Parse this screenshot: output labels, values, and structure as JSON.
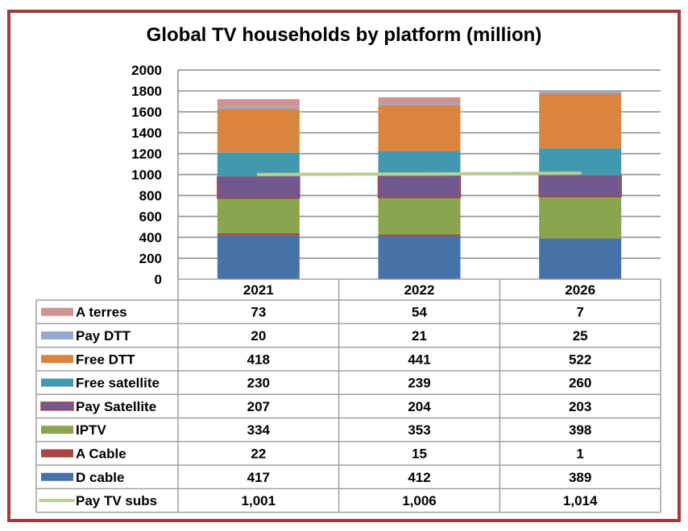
{
  "chart_data": {
    "type": "bar",
    "stacked": true,
    "title": "Global TV households by platform (million)",
    "xlabel": "",
    "ylabel": "",
    "ylim": [
      0,
      2000
    ],
    "yticks": [
      0,
      200,
      400,
      600,
      800,
      1000,
      1200,
      1400,
      1600,
      1800,
      2000
    ],
    "grid": true,
    "legend_placement": "data-table-bottom",
    "categories": [
      "2021",
      "2022",
      "2026"
    ],
    "series": [
      {
        "name": "D cable",
        "color": "#4572a7",
        "values": [
          417,
          412,
          389
        ],
        "display": [
          "417",
          "412",
          "389"
        ]
      },
      {
        "name": "A Cable",
        "color": "#aa4643",
        "values": [
          22,
          15,
          1
        ],
        "display": [
          "22",
          "15",
          "1"
        ]
      },
      {
        "name": "IPTV",
        "color": "#89a54e",
        "values": [
          334,
          353,
          398
        ],
        "display": [
          "334",
          "353",
          "398"
        ]
      },
      {
        "name": "Pay Satellite",
        "color": "#71588f",
        "border": "#aa4643",
        "values": [
          207,
          204,
          203
        ],
        "display": [
          "207",
          "204",
          "203"
        ]
      },
      {
        "name": "Free satellite",
        "color": "#4198af",
        "values": [
          230,
          239,
          260
        ],
        "display": [
          "230",
          "239",
          "260"
        ]
      },
      {
        "name": "Free DTT",
        "color": "#db843d",
        "values": [
          418,
          441,
          522
        ],
        "display": [
          "418",
          "441",
          "522"
        ]
      },
      {
        "name": "Pay DTT",
        "color": "#93a9cf",
        "values": [
          20,
          21,
          25
        ],
        "display": [
          "20",
          "21",
          "25"
        ]
      },
      {
        "name": "A terres",
        "color": "#d19392",
        "values": [
          73,
          54,
          7
        ],
        "display": [
          "73",
          "54",
          "7"
        ]
      }
    ],
    "line_series": {
      "name": "Pay TV subs",
      "color": "#b9cd96",
      "values": [
        1001,
        1006,
        1014
      ],
      "display": [
        "1,001",
        "1,006",
        "1,014"
      ]
    },
    "table_row_order": [
      "A terres",
      "Pay DTT",
      "Free DTT",
      "Free satellite",
      "Pay Satellite",
      "IPTV",
      "A Cable",
      "D cable",
      "Pay TV subs"
    ]
  }
}
